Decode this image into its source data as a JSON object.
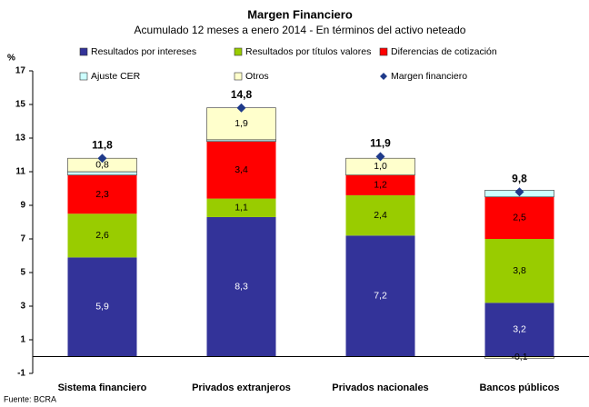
{
  "chart_data": {
    "type": "stacked-bar",
    "title": "Margen Financiero",
    "subtitle": "Acumulado 12 meses a enero 2014 - En términos del activo neteado",
    "y_axis_label": "%",
    "source": "Fuente: BCRA",
    "categories": [
      "Sistema financiero",
      "Privados extranjeros",
      "Privados nacionales",
      "Bancos públicos"
    ],
    "series": [
      {
        "name": "Resultados por intereses",
        "color": "#333399",
        "values": [
          5.9,
          8.3,
          7.2,
          3.2
        ],
        "value_labels": [
          "5,9",
          "8,3",
          "7,2",
          "3,2"
        ]
      },
      {
        "name": "Resultados por títulos valores",
        "color": "#99cc00",
        "values": [
          2.6,
          1.1,
          2.4,
          3.8
        ],
        "value_labels": [
          "2,6",
          "1,1",
          "2,4",
          "3,8"
        ]
      },
      {
        "name": "Diferencias de cotización",
        "color": "#ff0000",
        "values": [
          2.3,
          3.4,
          1.2,
          2.5
        ],
        "value_labels": [
          "2,3",
          "3,4",
          "1,2",
          "2,5"
        ]
      },
      {
        "name": "Ajuste CER",
        "color": "#ccffff",
        "values": [
          0.2,
          0.1,
          0.0,
          0.4
        ]
      },
      {
        "name": "Otros",
        "color": "#ffffcc",
        "values": [
          0.8,
          1.9,
          1.0,
          -0.1
        ],
        "value_labels": [
          "0,8",
          "1,9",
          "1,0",
          "-0,1"
        ]
      }
    ],
    "total": {
      "name": "Margen financiero",
      "color": "#1f3a8a",
      "values": [
        11.8,
        14.8,
        11.9,
        9.8
      ],
      "value_labels": [
        "11,8",
        "14,8",
        "11,9",
        "9,8"
      ]
    },
    "ylim": [
      -1,
      17
    ],
    "yticks": [
      -1,
      1,
      3,
      5,
      7,
      9,
      11,
      13,
      15,
      17
    ],
    "grid": false
  }
}
